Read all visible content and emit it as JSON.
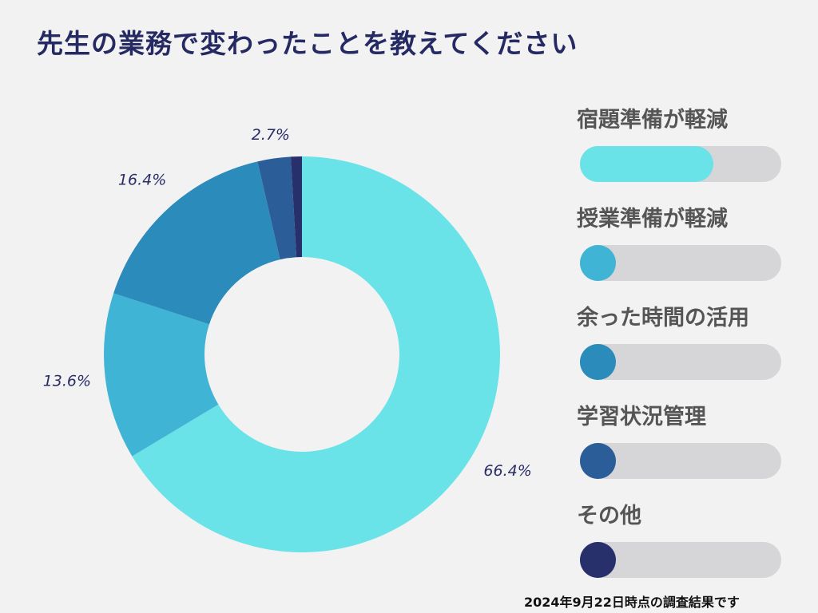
{
  "title": "先生の業務で変わったことを教えてください",
  "footnote": "2024年9月22日時点の調査結果です",
  "chart_data": {
    "type": "pie",
    "donut": true,
    "categories": [
      "宿題準備が軽減",
      "授業準備が軽減",
      "余った時間の活用",
      "学習状況管理",
      "その他"
    ],
    "values": [
      66.4,
      13.6,
      16.4,
      2.7,
      0.9
    ],
    "labels": [
      "66.4%",
      "13.6%",
      "16.4%",
      "2.7%",
      ""
    ],
    "colors": [
      "#6ae3e8",
      "#3fb4d4",
      "#2b8bba",
      "#2b5e98",
      "#27306a"
    ],
    "legend_placement": "right"
  }
}
